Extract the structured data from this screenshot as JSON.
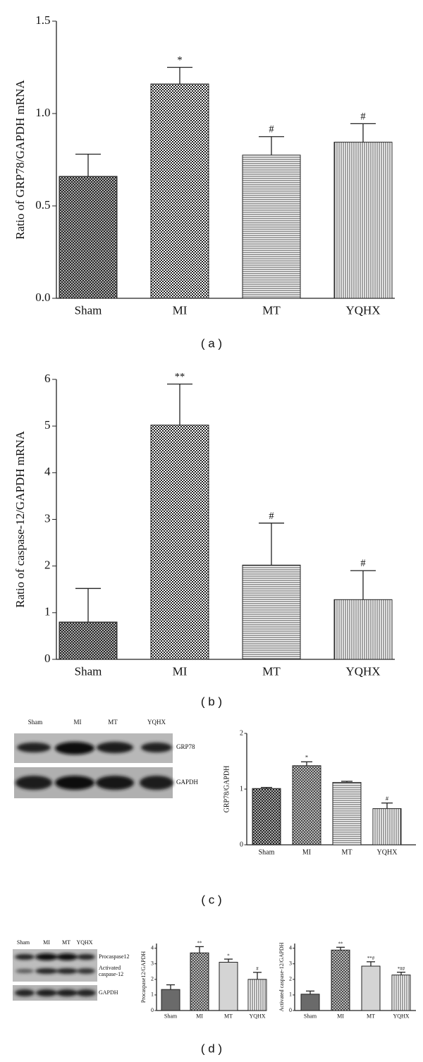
{
  "panel_labels": [
    "( a )",
    "( b )",
    "( c )",
    "( d )"
  ],
  "blots": [
    {
      "lanes": [
        "Sham",
        "MI",
        "MT",
        "YQHX"
      ],
      "band_labels": [
        "GRP78",
        "GAPDH"
      ]
    },
    {
      "lanes": [
        "Sham",
        "MI",
        "MT",
        "YQHX"
      ],
      "band_labels": [
        "Procaspase12",
        "Activated",
        "caspase-12",
        "GAPDH"
      ]
    }
  ],
  "chart_data": [
    {
      "type": "bar",
      "ylabel": "Ratio of GRP78/GAPDH mRNA",
      "categories": [
        "Sham",
        "MI",
        "MT",
        "YQHX"
      ],
      "values": [
        0.66,
        1.16,
        0.775,
        0.845
      ],
      "errors": [
        0.12,
        0.09,
        0.1,
        0.1
      ],
      "annotations": [
        null,
        "*",
        "#",
        "#"
      ],
      "patterns": [
        "crosshatch",
        "checker",
        "hlines",
        "vlines"
      ],
      "ylim": [
        0,
        1.5
      ],
      "yticks": [
        {
          "value": 0,
          "label": "0.0"
        },
        0.5,
        {
          "value": 1,
          "label": "1.0"
        },
        1.5
      ]
    },
    {
      "type": "bar",
      "ylabel": "Ratio of caspase-12/GAPDH mRNA",
      "categories": [
        "Sham",
        "MI",
        "MT",
        "YQHX"
      ],
      "values": [
        0.8,
        5.02,
        2.02,
        1.28
      ],
      "errors": [
        0.72,
        0.88,
        0.9,
        0.62
      ],
      "annotations": [
        null,
        "**",
        "#",
        "#"
      ],
      "patterns": [
        "crosshatch",
        "checker",
        "hlines",
        "vlines"
      ],
      "ylim": [
        0,
        6
      ],
      "yticks": [
        0,
        1,
        2,
        3,
        4,
        5,
        6
      ]
    },
    {
      "type": "bar",
      "ylabel": "GRP78/GAPDH",
      "categories": [
        "Sham",
        "MI",
        "MT",
        "YQHX"
      ],
      "values": [
        1.01,
        1.42,
        1.12,
        0.65
      ],
      "errors": [
        0.02,
        0.07,
        0.02,
        0.1
      ],
      "annotations": [
        null,
        "*",
        null,
        "#"
      ],
      "patterns": [
        "crosshatch",
        "diag",
        "hlines",
        "vlines"
      ],
      "ylim": [
        0,
        2
      ],
      "yticks": [
        0,
        1,
        2
      ]
    },
    {
      "type": "bar",
      "ylabel": "Procaspase12/GAPDH",
      "categories": [
        "Sham",
        "MI",
        "MT",
        "YQHX"
      ],
      "values": [
        1.35,
        3.7,
        3.1,
        2.0
      ],
      "errors": [
        0.3,
        0.4,
        0.2,
        0.45
      ],
      "annotations": [
        null,
        "**",
        "*",
        "#"
      ],
      "patterns": [
        "gray-dark",
        "diag",
        "gray-light",
        "vlines"
      ],
      "ylim": [
        0,
        4.3
      ],
      "yticks": [
        0,
        1,
        2,
        3,
        4
      ]
    },
    {
      "type": "bar",
      "ylabel": "Activated caspase-12/GAPDH",
      "categories": [
        "Sham",
        "MI",
        "MT",
        "YQHX"
      ],
      "values": [
        1.05,
        3.88,
        2.85,
        2.28
      ],
      "errors": [
        0.2,
        0.18,
        0.28,
        0.18
      ],
      "annotations": [
        null,
        "**",
        "**#",
        "*##"
      ],
      "patterns": [
        "gray-dark",
        "diag",
        "gray-light",
        "vlines"
      ],
      "ylim": [
        0,
        4.3
      ],
      "yticks": [
        0,
        1,
        2,
        3,
        4
      ]
    }
  ]
}
